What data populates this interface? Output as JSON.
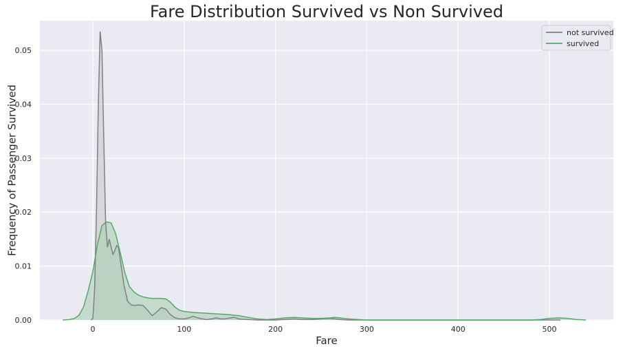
{
  "chart_data": {
    "type": "area",
    "title": "Fare Distribution Survived vs Non Survived",
    "xlabel": "Fare",
    "ylabel": "Frequency of Passenger Survived",
    "xlim": [
      -58,
      570
    ],
    "ylim": [
      0,
      0.0555
    ],
    "xticks": [
      0,
      100,
      200,
      300,
      400,
      500
    ],
    "yticks": [
      0.0,
      0.01,
      0.02,
      0.03,
      0.04,
      0.05
    ],
    "ytick_labels": [
      "0.00",
      "0.01",
      "0.02",
      "0.03",
      "0.04",
      "0.05"
    ],
    "grid": true,
    "legend_position": "top-right",
    "series": [
      {
        "name": "not survived",
        "color": "#808080",
        "fill": "#c8c8cc",
        "x": [
          -2,
          0,
          2,
          4,
          6,
          8,
          10,
          12,
          14,
          16,
          18,
          20,
          22,
          24,
          26,
          28,
          30,
          34,
          38,
          42,
          46,
          50,
          55,
          60,
          65,
          70,
          75,
          80,
          85,
          90,
          95,
          100,
          105,
          110,
          115,
          120,
          125,
          130,
          135,
          140,
          145,
          150,
          155,
          160,
          170,
          180,
          190,
          200,
          210,
          220,
          230,
          240,
          250,
          260,
          265,
          270,
          280,
          290,
          300,
          400,
          512
        ],
        "y": [
          0.0,
          0.0003,
          0.006,
          0.02,
          0.04,
          0.0535,
          0.05,
          0.033,
          0.018,
          0.0135,
          0.015,
          0.0135,
          0.0122,
          0.0128,
          0.0138,
          0.0135,
          0.0112,
          0.0065,
          0.0035,
          0.0028,
          0.0027,
          0.0028,
          0.0027,
          0.0018,
          0.0008,
          0.0015,
          0.0023,
          0.002,
          0.001,
          0.0004,
          0.0002,
          0.0002,
          0.0004,
          0.0007,
          0.0004,
          0.0002,
          0.0001,
          0.0002,
          0.0004,
          0.0002,
          0.0002,
          0.0004,
          0.0005,
          0.0002,
          0.0001,
          0.0,
          0.0,
          0.0,
          0.0001,
          0.0002,
          0.0001,
          0.0001,
          0.0002,
          0.0003,
          0.0002,
          0.0001,
          0.0,
          0.0,
          0.0,
          0.0,
          0.0
        ]
      },
      {
        "name": "survived",
        "color": "#55a868",
        "fill": "#a8cfb3",
        "x": [
          -33,
          -25,
          -20,
          -15,
          -10,
          -5,
          0,
          5,
          10,
          15,
          20,
          25,
          30,
          35,
          40,
          45,
          50,
          55,
          60,
          65,
          70,
          75,
          80,
          85,
          90,
          95,
          100,
          110,
          120,
          130,
          140,
          150,
          160,
          170,
          180,
          190,
          200,
          210,
          220,
          230,
          240,
          250,
          260,
          265,
          270,
          280,
          290,
          300,
          350,
          400,
          450,
          480,
          490,
          500,
          510,
          520,
          530,
          540
        ],
        "y": [
          0.0,
          0.0001,
          0.0003,
          0.0009,
          0.0025,
          0.0055,
          0.009,
          0.014,
          0.0175,
          0.0182,
          0.018,
          0.016,
          0.0125,
          0.0088,
          0.0062,
          0.0052,
          0.0046,
          0.0043,
          0.0041,
          0.004,
          0.004,
          0.004,
          0.0039,
          0.0033,
          0.0024,
          0.0018,
          0.0016,
          0.0014,
          0.0013,
          0.0012,
          0.0011,
          0.001,
          0.0008,
          0.0005,
          0.0002,
          0.0001,
          0.0002,
          0.0004,
          0.0005,
          0.0004,
          0.0003,
          0.0003,
          0.0004,
          0.0005,
          0.0004,
          0.0002,
          0.0001,
          0.0,
          0.0,
          0.0,
          0.0,
          0.0,
          0.0001,
          0.0003,
          0.0004,
          0.0003,
          0.0001,
          0.0
        ]
      }
    ]
  }
}
